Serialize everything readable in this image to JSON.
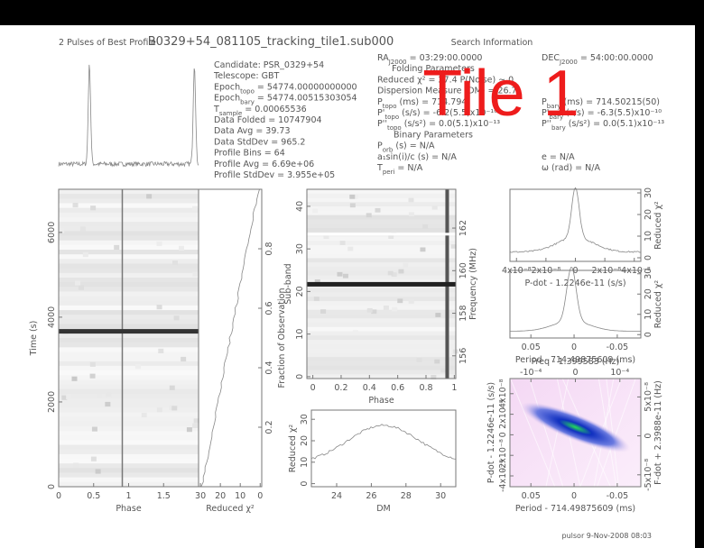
{
  "header": {
    "title": "B0329+54_081105_tracking_tile1.sub000",
    "profile_title": "2 Pulses of Best Profile",
    "search_title": "Search Information",
    "overlay": "Tile 1"
  },
  "info": {
    "col1": [
      {
        "label": "Candidate:  PSR_0329+54"
      },
      {
        "label": "Telescope:  GBT"
      },
      {
        "label": "Epoch",
        "sub": "topo",
        "value": " = 54774.00000000000"
      },
      {
        "label": "Epoch",
        "sub": "bary",
        "value": " = 54774.00515303054"
      },
      {
        "label": "T",
        "sub": "sample",
        "value": "     =  0.00065536"
      },
      {
        "label": "Data Folded     =  10747904"
      },
      {
        "label": "Data Avg        =  39.73"
      },
      {
        "label": "Data StdDev     =  965.2"
      },
      {
        "label": "Profile Bins    =  64"
      },
      {
        "label": "Profile Avg     =  6.69e+06"
      },
      {
        "label": "Profile StdDev  =  3.955e+05"
      }
    ],
    "col2": [
      {
        "label": "RA",
        "sub": "J2000",
        "value": " = 03:29:00.0000"
      },
      {
        "label": "Folding Parameters"
      },
      {
        "label": "Reduced χ² = 27.4    P(Noise) ~ 0"
      },
      {
        "label": "Dispersion Measure (DM) = 26.7"
      },
      {
        "label": "P",
        "sub": "topo",
        "value": " (ms)     =  714.794"
      },
      {
        "label": "P'",
        "sub": "topo",
        "value": " (s/s)  = -6.2(5.5)x10⁻¹⁰"
      },
      {
        "label": "P''",
        "sub": "topo",
        "value": " (s/s²) = 0.0(5.1)x10⁻¹³"
      },
      {
        "label": "Binary Parameters"
      },
      {
        "label": "P",
        "sub": "orb",
        "value": " (s) = N/A"
      },
      {
        "label": "a₁sin(i)/c (s) = N/A"
      },
      {
        "label": "T",
        "sub": "peri",
        "value": " = N/A"
      }
    ],
    "col3": [
      {
        "label": "DEC",
        "sub": "J2000",
        "value": " = 54:00:00.0000"
      },
      {
        "label": "P",
        "sub": "bary",
        "value": " (ms)     =  714.50215(50)"
      },
      {
        "label": "P'",
        "sub": "bary",
        "value": " (s/s)  = -6.3(5.5)x10⁻¹⁰"
      },
      {
        "label": "P''",
        "sub": "bary",
        "value": " (s/s²) = 0.0(5.1)x10⁻¹³"
      },
      {
        "label": "e = N/A"
      },
      {
        "label": "ω (rad) = N/A"
      }
    ]
  },
  "panels": [
    {
      "kind": "profile"
    },
    {
      "kind": "timephase",
      "bottom": [
        "0",
        "0.5",
        "1",
        "1.5"
      ],
      "left": [
        "0",
        "2000",
        "4000",
        "6000"
      ],
      "xlabel": "Phase",
      "ylabel": "Time (s)"
    },
    {
      "kind": "chi",
      "bottom": [
        "30",
        "20",
        "10",
        "0"
      ],
      "right": [
        "0.2",
        "0.4",
        "0.6",
        "0.8"
      ],
      "xlabel": "Reduced χ²",
      "y2label": "Fraction of Observation"
    },
    {
      "kind": "subband",
      "bottom": [
        "0",
        "0.2",
        "0.4",
        "0.6",
        "0.8",
        "1"
      ],
      "left": [
        "0",
        "10",
        "20",
        "30",
        "40"
      ],
      "right": [
        "156",
        "158",
        "160",
        "162"
      ],
      "xlabel": "Phase",
      "ylabel": "Sub-band",
      "y2label": "Frequency (MHz)"
    },
    {
      "kind": "dm",
      "bottom": [
        "24",
        "26",
        "28",
        "30"
      ],
      "left": [
        "0",
        "10",
        "20",
        "30"
      ],
      "xlabel": "DM",
      "ylabel": "Reduced χ²"
    },
    {
      "kind": "pdot",
      "bottom": [
        "4x10⁻⁸",
        "2x10⁻⁸",
        "0",
        "-2x10⁻⁸",
        "-4x10⁻⁸"
      ],
      "right": [
        "0",
        "10",
        "20",
        "30"
      ],
      "xlabel": "P-dot - 1.2246e-11 (s/s)",
      "y2label": "Reduced χ²"
    },
    {
      "kind": "period",
      "bottom": [
        "0.05",
        "0",
        "-0.05"
      ],
      "right": [
        "0",
        "10",
        "20",
        "30"
      ],
      "xlabel": "Period - 714.49875609 (ms)",
      "y2label": "Reduced χ²"
    },
    {
      "kind": "color",
      "top": [
        "-10⁻⁴",
        "0",
        "10⁻⁴"
      ],
      "toplabel": "Freq - 1.399583 (Hz)",
      "bottom": [
        "0.05",
        "0",
        "-0.05"
      ],
      "left": [
        "-4x10⁻⁸",
        "-2x10⁻⁸",
        "0",
        "2x10⁻⁸",
        "4x10⁻⁸"
      ],
      "right": [
        "-5x10⁻⁸",
        "0",
        "5x10⁻⁸"
      ],
      "xlabel": "Period - 714.49875609 (ms)",
      "ylabel": "P-dot - 1.2246e-11 (s/s)",
      "y2label": "F-dot + 2.3988e-11 (Hz)"
    }
  ],
  "footer": "pulsor  9-Nov-2008 08:03"
}
